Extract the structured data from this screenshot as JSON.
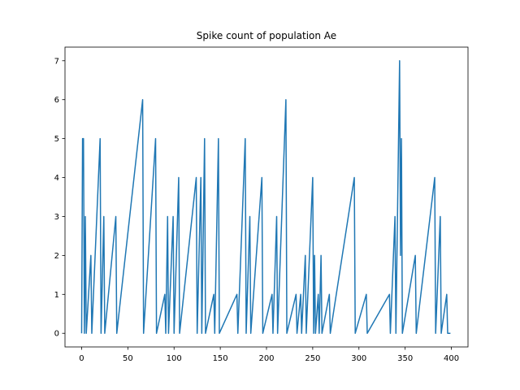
{
  "chart_data": {
    "type": "line",
    "title": "Spike count of population Ae",
    "xlabel": "",
    "ylabel": "",
    "xlim": [
      -18,
      418
    ],
    "ylim": [
      -0.35,
      7.35
    ],
    "x_ticks": [
      0,
      50,
      100,
      150,
      200,
      250,
      300,
      350,
      400
    ],
    "y_ticks": [
      0,
      1,
      2,
      3,
      4,
      5,
      6,
      7
    ],
    "grid": false,
    "line_color": "#1f77b4",
    "series": [
      {
        "points": [
          [
            0,
            0
          ],
          [
            1,
            5
          ],
          [
            2,
            5
          ],
          [
            3,
            0
          ],
          [
            4,
            3
          ],
          [
            5,
            0
          ],
          [
            10,
            2
          ],
          [
            11,
            0
          ],
          [
            20,
            5
          ],
          [
            21,
            0
          ],
          [
            24,
            3
          ],
          [
            25,
            0
          ],
          [
            37,
            3
          ],
          [
            38,
            0
          ],
          [
            66,
            6
          ],
          [
            67,
            0
          ],
          [
            80,
            5
          ],
          [
            81,
            0
          ],
          [
            90,
            1
          ],
          [
            91,
            0
          ],
          [
            93,
            3
          ],
          [
            94,
            0
          ],
          [
            99,
            3
          ],
          [
            100,
            0
          ],
          [
            105,
            4
          ],
          [
            106,
            0
          ],
          [
            124,
            4
          ],
          [
            125,
            0
          ],
          [
            129,
            4
          ],
          [
            130,
            0
          ],
          [
            133,
            5
          ],
          [
            134,
            0
          ],
          [
            143,
            1
          ],
          [
            144,
            0
          ],
          [
            148,
            5
          ],
          [
            149,
            0
          ],
          [
            168,
            1
          ],
          [
            169,
            0
          ],
          [
            177,
            5
          ],
          [
            178,
            0
          ],
          [
            182,
            3
          ],
          [
            183,
            0
          ],
          [
            195,
            4
          ],
          [
            196,
            0
          ],
          [
            206,
            1
          ],
          [
            207,
            0
          ],
          [
            211,
            3
          ],
          [
            212,
            0
          ],
          [
            221,
            6
          ],
          [
            222,
            0
          ],
          [
            232,
            1
          ],
          [
            233,
            0
          ],
          [
            237,
            1
          ],
          [
            238,
            0
          ],
          [
            242,
            2
          ],
          [
            243,
            0
          ],
          [
            250,
            4
          ],
          [
            251,
            0
          ],
          [
            252,
            2
          ],
          [
            253,
            0
          ],
          [
            256,
            1
          ],
          [
            257,
            0
          ],
          [
            259,
            2
          ],
          [
            260,
            0
          ],
          [
            268,
            1
          ],
          [
            269,
            0
          ],
          [
            295,
            4
          ],
          [
            296,
            0
          ],
          [
            308,
            1
          ],
          [
            309,
            0
          ],
          [
            333,
            1
          ],
          [
            334,
            0
          ],
          [
            339,
            3
          ],
          [
            340,
            0
          ],
          [
            344,
            7
          ],
          [
            345,
            2
          ],
          [
            346,
            5
          ],
          [
            347,
            0
          ],
          [
            361,
            2
          ],
          [
            362,
            0
          ],
          [
            382,
            4
          ],
          [
            383,
            0
          ],
          [
            388,
            3
          ],
          [
            389,
            0
          ],
          [
            395,
            1
          ],
          [
            396,
            0
          ],
          [
            399,
            0
          ]
        ]
      }
    ]
  }
}
